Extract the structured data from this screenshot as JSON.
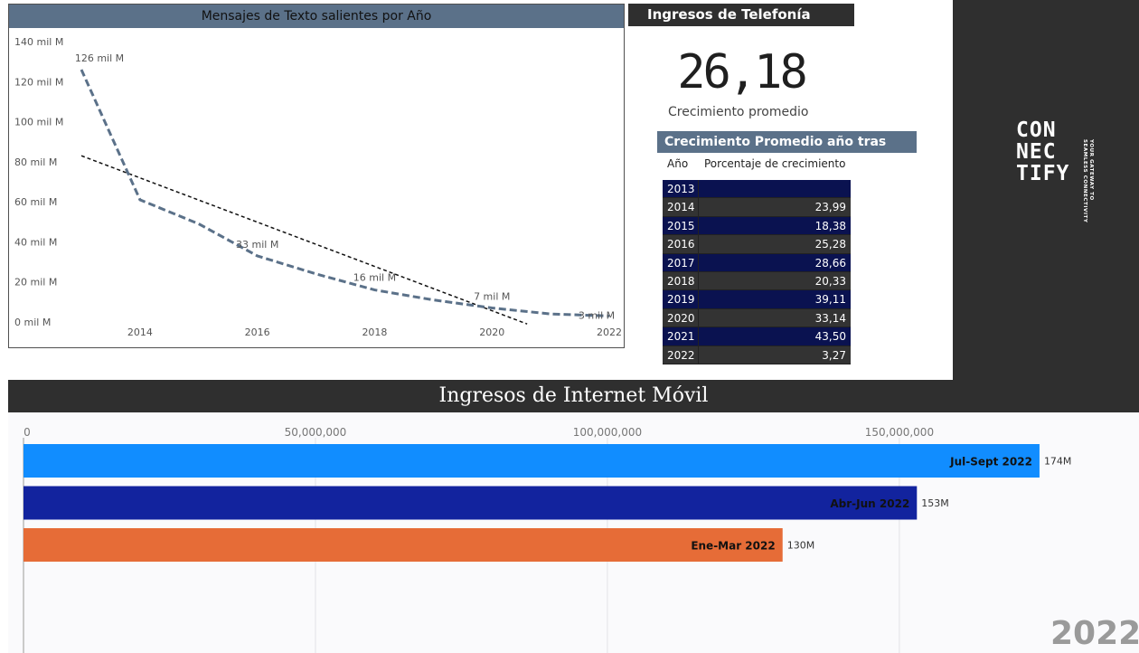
{
  "colors": {
    "dark": "#2f2f2f",
    "slate": "#5b7189",
    "table_dark_blue": "#0a1250",
    "table_dark_grey": "#333333"
  },
  "logo": {
    "lines": [
      "CON",
      "NEC",
      "TIFY"
    ],
    "tagline": [
      "YOUR GATEWAY TO",
      "SEAMLESS CONNECTIVITY"
    ]
  },
  "kpi": {
    "header": "Ingresos de Telefonía Móvil",
    "value": "26,18",
    "label": "Crecimiento promedio"
  },
  "growth_table": {
    "title": "Crecimiento Promedio año tras año",
    "columns": [
      "Año",
      "Porcentaje de crecimiento"
    ],
    "rows": [
      {
        "year": "2013",
        "value": ""
      },
      {
        "year": "2014",
        "value": "23,99"
      },
      {
        "year": "2015",
        "value": "18,38"
      },
      {
        "year": "2016",
        "value": "25,28"
      },
      {
        "year": "2017",
        "value": "28,66"
      },
      {
        "year": "2018",
        "value": "20,33"
      },
      {
        "year": "2019",
        "value": "39,11"
      },
      {
        "year": "2020",
        "value": "33,14"
      },
      {
        "year": "2021",
        "value": "43,50"
      },
      {
        "year": "2022",
        "value": "3,27"
      }
    ]
  },
  "chart_data": [
    {
      "type": "line",
      "title": "Mensajes de Texto salientes por Año",
      "x": [
        2013,
        2014,
        2015,
        2016,
        2017,
        2018,
        2019,
        2020,
        2021,
        2022
      ],
      "xticks": [
        2014,
        2016,
        2018,
        2020,
        2022
      ],
      "ylim": [
        0,
        140
      ],
      "yticks": [
        0,
        20,
        40,
        60,
        80,
        100,
        120,
        140
      ],
      "ytick_labels": [
        "0 mil M",
        "20 mil M",
        "40 mil M",
        "60 mil M",
        "80 mil M",
        "100 mil M",
        "120 mil M",
        "140 mil M"
      ],
      "series": [
        {
          "values": [
            126,
            61,
            49,
            33,
            24,
            16,
            11,
            7,
            4,
            3
          ]
        }
      ],
      "trendline": {
        "x": [
          2013,
          2020.6
        ],
        "y": [
          83,
          -1
        ]
      },
      "data_labels": [
        {
          "x": 2013,
          "y": 126,
          "text": "126 mil M"
        },
        {
          "x": 2016,
          "y": 33,
          "text": "33 mil M"
        },
        {
          "x": 2018,
          "y": 16,
          "text": "16 mil M"
        },
        {
          "x": 2020,
          "y": 7,
          "text": "7 mil M"
        },
        {
          "x": 2022,
          "y": 3,
          "text": "3 mil M"
        }
      ],
      "grid": false
    },
    {
      "type": "bar",
      "orientation": "horizontal",
      "title": "Ingresos de Internet Móvil",
      "categories": [
        "Jul-Sept 2022",
        "Abr-Jun 2022",
        "Ene-Mar 2022"
      ],
      "values": [
        174000000,
        153000000,
        130000000
      ],
      "value_labels": [
        "174M",
        "153M",
        "130M"
      ],
      "bar_colors": [
        "#118dff",
        "#12239e",
        "#e66c37"
      ],
      "xlim": [
        0,
        185000000
      ],
      "xticks": [
        0,
        50000000,
        100000000,
        150000000
      ],
      "xtick_labels": [
        "0",
        "50,000,000",
        "100,000,000",
        "150,000,000"
      ],
      "grid": true,
      "year": "2022"
    }
  ]
}
